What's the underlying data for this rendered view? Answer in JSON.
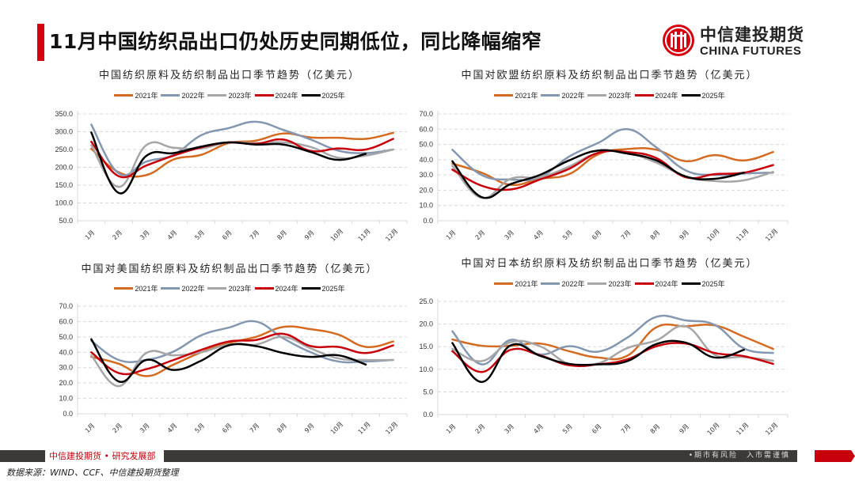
{
  "header": {
    "title": "11月中国纺织品出口仍处历史同期低位，同比降幅缩窄",
    "logo_cn": "中信建投期货",
    "logo_en": "CHINA FUTURES",
    "brand_color": "#d7000f"
  },
  "footer": {
    "department": "中信建投期货 • 研究发展部",
    "risk_notice": "•期市有风险　入市需谨慎",
    "source": "数据来源：WIND、CCF、中信建投期货整理"
  },
  "legend_labels": [
    "2021年",
    "2022年",
    "2023年",
    "2024年",
    "2025年"
  ],
  "series_colors": [
    "#d46b20",
    "#8497b0",
    "#a6a6a6",
    "#c8000b",
    "#000000"
  ],
  "chart_data": [
    {
      "type": "line",
      "title": "中国纺织原料及纺织制品出口季节趋势（亿美元）",
      "categories": [
        "1月",
        "2月",
        "3月",
        "4月",
        "5月",
        "6月",
        "7月",
        "8月",
        "9月",
        "10月",
        "11月",
        "12月"
      ],
      "ylim": [
        50,
        350
      ],
      "yticks": [
        "350.0",
        "300.0",
        "250.0",
        "200.0",
        "150.0",
        "100.0",
        "50.0"
      ],
      "ytick_values": [
        350,
        300,
        250,
        200,
        150,
        100,
        50
      ],
      "grid": true,
      "legend": "top",
      "xlabel": "",
      "ylabel": "",
      "series": [
        {
          "name": "2021年",
          "values": [
            252,
            186,
            178,
            222,
            235,
            268,
            275,
            295,
            284,
            283,
            280,
            297
          ]
        },
        {
          "name": "2022年",
          "values": [
            320,
            183,
            216,
            235,
            290,
            310,
            328,
            305,
            278,
            247,
            240,
            250
          ]
        },
        {
          "name": "2023年",
          "values": [
            262,
            145,
            262,
            255,
            253,
            270,
            268,
            270,
            257,
            227,
            233,
            250
          ]
        },
        {
          "name": "2024年",
          "values": [
            272,
            175,
            205,
            233,
            256,
            270,
            266,
            278,
            246,
            253,
            250,
            280
          ]
        },
        {
          "name": "2025年",
          "values": [
            298,
            128,
            232,
            240,
            258,
            270,
            264,
            264,
            243,
            221,
            238
          ]
        }
      ]
    },
    {
      "type": "line",
      "title": "中国对欧盟纺织原料及纺织制品出口季节趋势（亿美元）",
      "categories": [
        "1月",
        "2月",
        "3月",
        "4月",
        "5月",
        "6月",
        "7月",
        "8月",
        "9月",
        "10月",
        "11月",
        "12月"
      ],
      "ylim": [
        0,
        70
      ],
      "yticks": [
        "70.0",
        "60.0",
        "50.0",
        "40.0",
        "30.0",
        "20.0",
        "10.0",
        "0.0"
      ],
      "ytick_values": [
        70,
        60,
        50,
        40,
        30,
        20,
        10,
        0
      ],
      "grid": true,
      "legend": "top",
      "xlabel": "",
      "ylabel": "",
      "series": [
        {
          "name": "2021年",
          "values": [
            37.5,
            31.5,
            23.5,
            27.5,
            30.5,
            43.5,
            47,
            46.5,
            39,
            43,
            39.5,
            45
          ]
        },
        {
          "name": "2022年",
          "values": [
            46.5,
            30,
            27,
            28.5,
            42,
            51,
            60,
            48,
            33,
            30,
            31,
            31.5
          ]
        },
        {
          "name": "2023年",
          "values": [
            36,
            15,
            27.5,
            28.5,
            35.5,
            44.5,
            44.5,
            38,
            29,
            26,
            26.5,
            32
          ]
        },
        {
          "name": "2024年",
          "values": [
            33.5,
            23,
            20.5,
            27,
            34,
            44.5,
            45,
            41,
            28.5,
            30.5,
            31.5,
            36.5
          ]
        },
        {
          "name": "2025年",
          "values": [
            39,
            15.5,
            24,
            30,
            39.5,
            46,
            44,
            39.5,
            29,
            27.5,
            31.5
          ]
        }
      ]
    },
    {
      "type": "line",
      "title": "中国对美国纺织原料及纺织制品出口季节趋势（亿美元）",
      "categories": [
        "1月",
        "2月",
        "3月",
        "4月",
        "5月",
        "6月",
        "7月",
        "8月",
        "9月",
        "10月",
        "11月",
        "12月"
      ],
      "ylim": [
        0,
        70
      ],
      "yticks": [
        "70.0",
        "60.0",
        "50.0",
        "40.0",
        "30.0",
        "20.0",
        "10.0",
        "0.0"
      ],
      "ytick_values": [
        70,
        60,
        50,
        40,
        30,
        20,
        10,
        0
      ],
      "grid": true,
      "legend": "top",
      "xlabel": "",
      "ylabel": "",
      "series": [
        {
          "name": "2021年",
          "values": [
            37,
            32.5,
            24.5,
            32,
            40,
            46,
            50,
            56.5,
            55,
            51.5,
            43.5,
            47
          ]
        },
        {
          "name": "2022年",
          "values": [
            47.5,
            35,
            35,
            40.5,
            51,
            56,
            60,
            49,
            40,
            34,
            34,
            35
          ]
        },
        {
          "name": "2023年",
          "values": [
            38,
            18,
            39.5,
            38,
            40,
            45,
            45,
            50,
            42.5,
            36,
            35,
            35
          ]
        },
        {
          "name": "2024年",
          "values": [
            40,
            26.5,
            29,
            35,
            41.5,
            47,
            48,
            52,
            44,
            43.5,
            39.5,
            44.5
          ]
        },
        {
          "name": "2025年",
          "values": [
            48.5,
            21,
            35,
            28.5,
            34.5,
            44.5,
            44,
            39.5,
            37,
            38,
            32
          ]
        }
      ]
    },
    {
      "type": "line",
      "title": "中国对日本纺织原料及纺织制品出口季节趋势（亿美元）",
      "categories": [
        "1月",
        "2月",
        "3月",
        "4月",
        "5月",
        "6月",
        "7月",
        "8月",
        "9月",
        "10月",
        "11月",
        "12月"
      ],
      "ylim": [
        0,
        25
      ],
      "yticks": [
        "25.0",
        "20.0",
        "15.0",
        "10.0",
        "5.0",
        "0.0"
      ],
      "ytick_values": [
        25,
        20,
        15,
        10,
        5,
        0
      ],
      "grid": true,
      "legend": "top",
      "xlabel": "",
      "ylabel": "",
      "series": [
        {
          "name": "2021年",
          "values": [
            16.6,
            15.2,
            15.2,
            15.7,
            14.0,
            12.6,
            13.0,
            19.3,
            19.5,
            19.7,
            17.2,
            14.5
          ]
        },
        {
          "name": "2022年",
          "values": [
            18.4,
            11.1,
            16.5,
            13.3,
            15.1,
            13.9,
            17.0,
            21.6,
            20.8,
            19.8,
            14.6,
            13.6
          ]
        },
        {
          "name": "2023年",
          "values": [
            14.5,
            11.8,
            16.0,
            15.1,
            11.2,
            11.3,
            14.7,
            16.4,
            19.5,
            13.2,
            12.7,
            11.9
          ]
        },
        {
          "name": "2024年",
          "values": [
            14.0,
            9.4,
            14.3,
            13.1,
            10.9,
            11.1,
            12.2,
            15.1,
            15.7,
            13.6,
            12.9,
            11.2
          ]
        },
        {
          "name": "2025年",
          "values": [
            15.8,
            7.2,
            15.3,
            13.0,
            11.2,
            11.1,
            11.8,
            15.6,
            15.9,
            12.6,
            14.3
          ]
        }
      ]
    }
  ]
}
